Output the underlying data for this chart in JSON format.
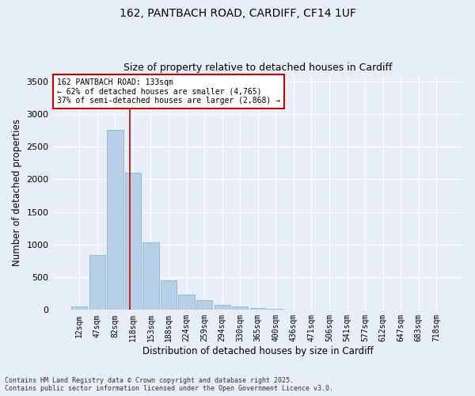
{
  "title_line1": "162, PANTBACH ROAD, CARDIFF, CF14 1UF",
  "title_line2": "Size of property relative to detached houses in Cardiff",
  "xlabel": "Distribution of detached houses by size in Cardiff",
  "ylabel": "Number of detached properties",
  "footnote_line1": "Contains HM Land Registry data © Crown copyright and database right 2025.",
  "footnote_line2": "Contains public sector information licensed under the Open Government Licence v3.0.",
  "annotation_line1": "162 PANTBACH ROAD: 133sqm",
  "annotation_line2": "← 62% of detached houses are smaller (4,765)",
  "annotation_line3": "37% of semi-detached houses are larger (2,868) →",
  "bar_color": "#b8cfe8",
  "bar_edge_color": "#7aafd4",
  "vline_color": "#cc0000",
  "background_color": "#e8eef8",
  "grid_color": "#ffffff",
  "categories": [
    "12sqm",
    "47sqm",
    "82sqm",
    "118sqm",
    "153sqm",
    "188sqm",
    "224sqm",
    "259sqm",
    "294sqm",
    "330sqm",
    "365sqm",
    "400sqm",
    "436sqm",
    "471sqm",
    "506sqm",
    "541sqm",
    "577sqm",
    "612sqm",
    "647sqm",
    "683sqm",
    "718sqm"
  ],
  "values": [
    55,
    840,
    2760,
    2100,
    1030,
    455,
    230,
    150,
    80,
    50,
    25,
    15,
    5,
    2,
    1,
    0,
    0,
    0,
    0,
    0,
    0
  ],
  "vline_x_index": 2.82,
  "ylim": [
    0,
    3600
  ],
  "yticks": [
    0,
    500,
    1000,
    1500,
    2000,
    2500,
    3000,
    3500
  ]
}
